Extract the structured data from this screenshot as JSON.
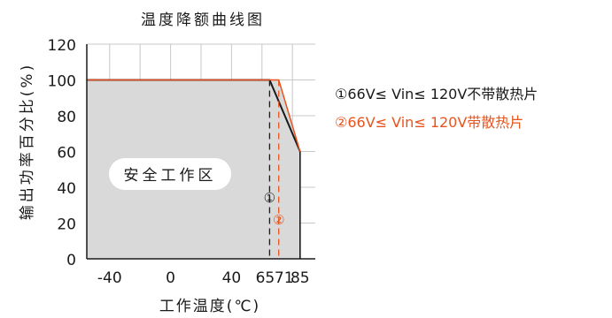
{
  "chart_data": {
    "type": "area",
    "title": "温度降额曲线图",
    "xlabel": "工作温度(℃)",
    "ylabel": "输出功率百分比(%)",
    "xlim": [
      -55,
      95
    ],
    "ylim": [
      0,
      120
    ],
    "x_ticks": [
      {
        "value": -40,
        "label": "-40"
      },
      {
        "value": 0,
        "label": "0"
      },
      {
        "value": 40,
        "label": "40"
      },
      {
        "value": 65,
        "label": "65"
      },
      {
        "value": 71,
        "label": "71"
      },
      {
        "value": 85,
        "label": "85"
      }
    ],
    "y_ticks": [
      0,
      20,
      40,
      60,
      80,
      100,
      120
    ],
    "x_grid": [
      -40,
      -20,
      0,
      20,
      40,
      60,
      80
    ],
    "grid": true,
    "series": [
      {
        "name": "①66V≤ Vin≤ 120V不带散热片",
        "marker": "①",
        "color": "#1a1a1a",
        "x": [
          -55,
          65,
          85
        ],
        "y": [
          100,
          100,
          60
        ],
        "drop_line_x": 65
      },
      {
        "name": "②66V≤ Vin≤ 120V带散热片",
        "marker": "②",
        "color": "#e8541f",
        "x": [
          -55,
          71,
          85
        ],
        "y": [
          100,
          100,
          60
        ],
        "drop_line_x": 71
      }
    ],
    "fill_color": "#d9d9d9",
    "region_label": "安全工作区",
    "legend_position": "right"
  }
}
